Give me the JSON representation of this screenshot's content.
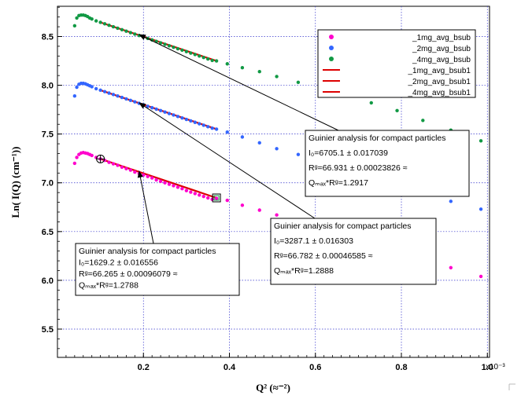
{
  "chart_data": {
    "type": "scatter",
    "xlabel": "Q² (≈⁻²)",
    "ylabel": "Ln( I(Q) (cm⁻¹))",
    "x_multiplier_label": "x10⁻³",
    "xlim": [
      0.0,
      1.005
    ],
    "ylim": [
      5.21,
      8.81
    ],
    "x_ticks": [
      0.2,
      0.4,
      0.6,
      0.8,
      1.0
    ],
    "x_tick_labels": [
      "0.2",
      "0.4",
      "0.6",
      "0.8",
      "1.0"
    ],
    "y_ticks": [
      5.5,
      6.0,
      6.5,
      7.0,
      7.5,
      8.0,
      8.5
    ],
    "y_tick_labels": [
      "5.5",
      "6.0",
      "6.5",
      "7.0",
      "7.5",
      "8.0",
      "8.5"
    ],
    "grid": true,
    "legend_position": "top-right",
    "series": [
      {
        "name": "_1mg_avg_bsub",
        "kind": "points",
        "color": "#ff00cc",
        "x": [
          0.04,
          0.045,
          0.05,
          0.055,
          0.06,
          0.065,
          0.07,
          0.075,
          0.08,
          0.09,
          0.1,
          0.11,
          0.12,
          0.13,
          0.14,
          0.15,
          0.16,
          0.17,
          0.18,
          0.19,
          0.2,
          0.21,
          0.22,
          0.23,
          0.24,
          0.25,
          0.26,
          0.27,
          0.28,
          0.29,
          0.3,
          0.31,
          0.32,
          0.33,
          0.34,
          0.35,
          0.36,
          0.37,
          0.395,
          0.43,
          0.47,
          0.51,
          0.56,
          0.61,
          0.67,
          0.73,
          0.79,
          0.85,
          0.915,
          0.985
        ],
        "y": [
          7.2,
          7.26,
          7.29,
          7.305,
          7.31,
          7.305,
          7.3,
          7.29,
          7.28,
          7.26,
          7.245,
          7.23,
          7.21,
          7.195,
          7.18,
          7.16,
          7.145,
          7.13,
          7.11,
          7.095,
          7.08,
          7.065,
          7.05,
          7.03,
          7.015,
          7.0,
          6.985,
          6.97,
          6.955,
          6.94,
          6.92,
          6.905,
          6.89,
          6.875,
          6.86,
          6.845,
          6.83,
          6.84,
          6.82,
          6.77,
          6.72,
          6.67,
          6.62,
          6.56,
          6.5,
          6.42,
          6.34,
          6.24,
          6.13,
          6.04
        ]
      },
      {
        "name": "_2mg_avg_bsub",
        "kind": "points",
        "color": "#3366ff",
        "x": [
          0.04,
          0.045,
          0.05,
          0.055,
          0.06,
          0.065,
          0.07,
          0.075,
          0.08,
          0.09,
          0.1,
          0.11,
          0.12,
          0.13,
          0.14,
          0.15,
          0.16,
          0.17,
          0.18,
          0.19,
          0.2,
          0.21,
          0.22,
          0.23,
          0.24,
          0.25,
          0.26,
          0.27,
          0.28,
          0.29,
          0.3,
          0.31,
          0.32,
          0.33,
          0.34,
          0.35,
          0.36,
          0.37,
          0.395,
          0.43,
          0.47,
          0.51,
          0.56,
          0.61,
          0.67,
          0.73,
          0.79,
          0.85,
          0.915,
          0.985
        ],
        "y": [
          7.89,
          7.98,
          8.01,
          8.02,
          8.02,
          8.015,
          8.005,
          7.995,
          7.985,
          7.965,
          7.95,
          7.935,
          7.92,
          7.905,
          7.89,
          7.875,
          7.86,
          7.845,
          7.83,
          7.815,
          7.8,
          7.785,
          7.77,
          7.755,
          7.74,
          7.725,
          7.71,
          7.695,
          7.68,
          7.665,
          7.65,
          7.635,
          7.62,
          7.605,
          7.59,
          7.575,
          7.56,
          7.55,
          7.52,
          7.47,
          7.41,
          7.35,
          7.29,
          7.22,
          7.15,
          7.06,
          6.97,
          6.89,
          6.81,
          6.73
        ]
      },
      {
        "name": "_4mg_avg_bsub",
        "kind": "points",
        "color": "#119944",
        "x": [
          0.04,
          0.045,
          0.05,
          0.055,
          0.06,
          0.065,
          0.07,
          0.075,
          0.08,
          0.09,
          0.1,
          0.11,
          0.12,
          0.13,
          0.14,
          0.15,
          0.16,
          0.17,
          0.18,
          0.19,
          0.2,
          0.21,
          0.22,
          0.23,
          0.24,
          0.25,
          0.26,
          0.27,
          0.28,
          0.29,
          0.3,
          0.31,
          0.32,
          0.33,
          0.34,
          0.35,
          0.36,
          0.37,
          0.395,
          0.43,
          0.47,
          0.51,
          0.56,
          0.61,
          0.67,
          0.73,
          0.79,
          0.85,
          0.915,
          0.985
        ],
        "y": [
          8.61,
          8.69,
          8.715,
          8.72,
          8.72,
          8.715,
          8.705,
          8.69,
          8.68,
          8.66,
          8.645,
          8.63,
          8.615,
          8.6,
          8.585,
          8.57,
          8.555,
          8.54,
          8.525,
          8.51,
          8.495,
          8.48,
          8.465,
          8.45,
          8.435,
          8.42,
          8.405,
          8.39,
          8.375,
          8.36,
          8.345,
          8.33,
          8.315,
          8.3,
          8.285,
          8.27,
          8.255,
          8.25,
          8.22,
          8.18,
          8.14,
          8.09,
          8.03,
          7.97,
          7.9,
          7.82,
          7.74,
          7.64,
          7.54,
          7.43
        ]
      },
      {
        "name": "_1mg_avg_bsub1",
        "kind": "fit-line",
        "color": "#dd0000",
        "x": [
          0.1,
          0.37
        ],
        "y": [
          7.245,
          6.845
        ]
      },
      {
        "name": "_2mg_avg_bsub1",
        "kind": "fit-line",
        "color": "#dd0000",
        "x": [
          0.1,
          0.37
        ],
        "y": [
          7.95,
          7.55
        ]
      },
      {
        "name": "_4mg_avg_bsub1",
        "kind": "fit-line",
        "color": "#dd0000",
        "x": [
          0.1,
          0.37
        ],
        "y": [
          8.645,
          8.25
        ]
      }
    ],
    "markers": [
      {
        "kind": "cursor-circle",
        "x": 0.1,
        "y": 7.245
      },
      {
        "kind": "cursor-square",
        "x": 0.37,
        "y": 6.845
      }
    ],
    "annotations": [
      {
        "title": "Guinier analysis for compact particles",
        "i0": "I₀=6705.1 ± 0.017039",
        "rg": "Rᵍ=66.931 ± 0.00023826 ≈",
        "qmax": "Qₘₐₓ*Rᵍ=1.2917",
        "arrow_to": {
          "x": 0.19,
          "y": 8.52
        }
      },
      {
        "title": "Guinier analysis for compact particles",
        "i0": "I₀=3287.1 ± 0.016303",
        "rg": "Rᵍ=66.782 ± 0.00046585 ≈",
        "qmax": "Qₘₐₓ*Rᵍ=1.2888",
        "arrow_to": {
          "x": 0.19,
          "y": 7.82
        }
      },
      {
        "title": "Guinier analysis for compact particles",
        "i0": "I₀=1629.2 ± 0.016556",
        "rg": "Rᵍ=66.265 ± 0.00096079 ≈",
        "qmax": "Qₘₐₓ*Rᵍ=1.2788",
        "arrow_to": {
          "x": 0.19,
          "y": 7.12
        }
      }
    ]
  }
}
